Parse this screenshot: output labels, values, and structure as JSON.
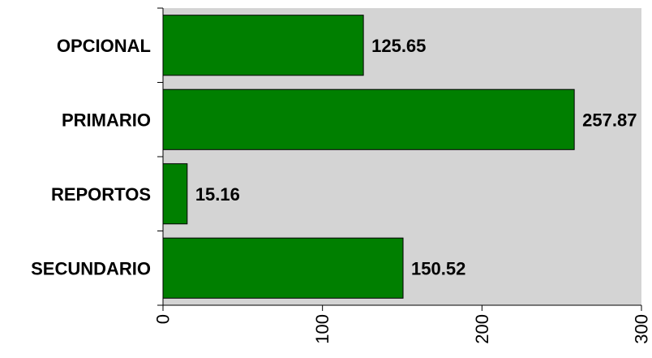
{
  "chart_data": {
    "type": "bar",
    "orientation": "horizontal",
    "categories": [
      "OPCIONAL",
      "PRIMARIO",
      "REPORTOS",
      "SECUNDARIO"
    ],
    "values": [
      125.65,
      257.87,
      15.16,
      150.52
    ],
    "value_labels": [
      "125.65",
      "257.87",
      "15.16",
      "150.52"
    ],
    "xlim": [
      0,
      300
    ],
    "x_ticks": [
      0,
      100,
      200,
      300
    ],
    "x_tick_labels": [
      "0",
      "100",
      "200",
      "300"
    ],
    "title": "",
    "xlabel": "",
    "ylabel": "",
    "grid": false,
    "legend": "none",
    "colors": {
      "bar": "#007f00",
      "plot_background": "#d4d4d4",
      "axis": "#000000"
    }
  }
}
